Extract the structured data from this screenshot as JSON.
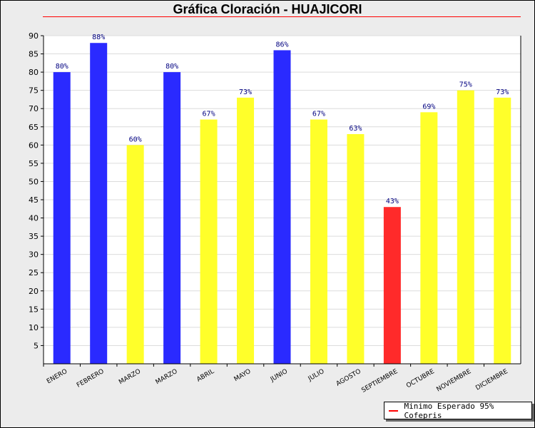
{
  "chart_data": {
    "type": "bar",
    "title": "Gráfica Cloración - HUAJICORI",
    "categories": [
      "ENERO",
      "FEBRERO",
      "MARZO",
      "MARZO",
      "ABRIL",
      "MAYO",
      "JUNIO",
      "JULIO",
      "AGOSTO",
      "SEPTIEMBRE",
      "OCTUBRE",
      "NOVIEMBRE",
      "DICIEMBRE"
    ],
    "values": [
      80,
      88,
      60,
      80,
      67,
      73,
      86,
      67,
      63,
      43,
      69,
      75,
      73
    ],
    "labels": [
      "80%",
      "88%",
      "60%",
      "80%",
      "67%",
      "73%",
      "86%",
      "67%",
      "63%",
      "43%",
      "69%",
      "75%",
      "73%"
    ],
    "colors": [
      "#2a2aff",
      "#2a2aff",
      "#ffff2a",
      "#2a2aff",
      "#ffff2a",
      "#ffff2a",
      "#2a2aff",
      "#ffff2a",
      "#ffff2a",
      "#ff2a2a",
      "#ffff2a",
      "#ffff2a",
      "#ffff2a"
    ],
    "ylim": [
      0,
      90
    ],
    "yticks": [
      5,
      10,
      15,
      20,
      25,
      30,
      35,
      40,
      45,
      50,
      55,
      60,
      65,
      70,
      75,
      80,
      85,
      90
    ],
    "grid": true,
    "legend": {
      "label": "Minimo Esperado 95% Cofepris",
      "color": "#ff0000",
      "placement": "bottom-right"
    }
  }
}
